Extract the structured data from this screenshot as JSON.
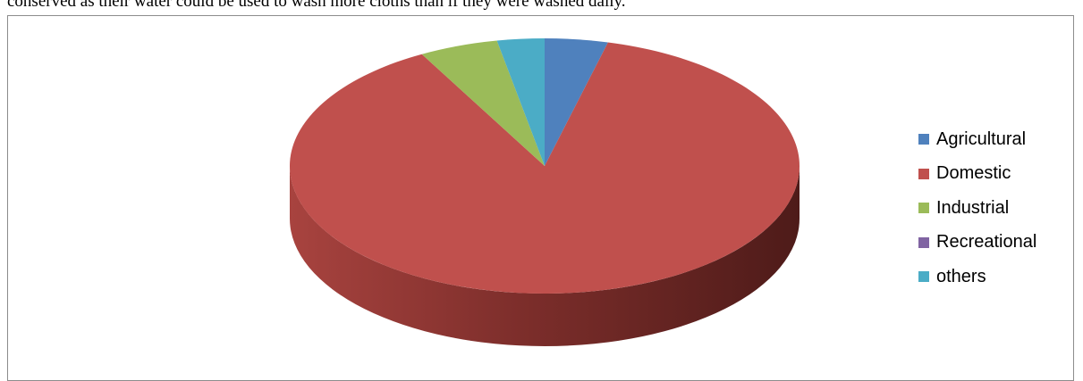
{
  "document": {
    "text_above": "conserved as their water could be used to wash more cloths than if they were washed daily."
  },
  "chart_data": {
    "type": "pie",
    "variant": "3d",
    "title": "",
    "legend_position": "right",
    "categories": [
      "Agricultural",
      "Domestic",
      "Industrial",
      "Recreational",
      "others"
    ],
    "values": [
      4,
      88,
      5,
      0,
      3
    ],
    "colors": [
      "#4f81bd",
      "#c0504d",
      "#9bbb59",
      "#8064a2",
      "#4bacc6"
    ]
  }
}
